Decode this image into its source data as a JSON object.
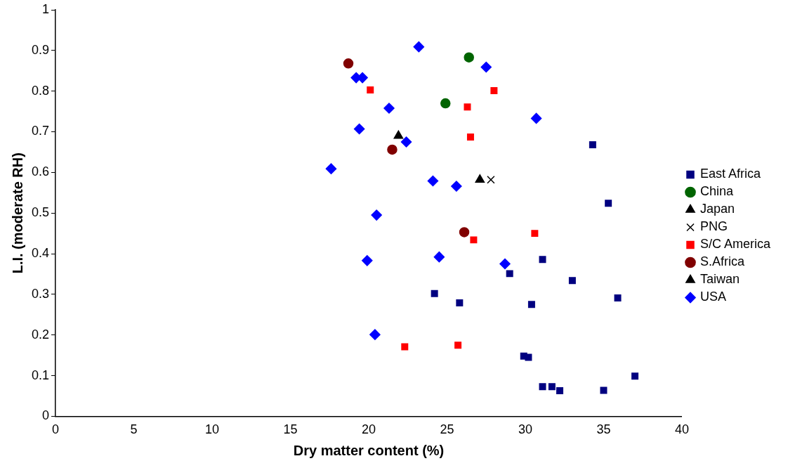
{
  "chart_data": {
    "type": "scatter",
    "xlabel": "Dry matter content (%)",
    "ylabel": "L.I. (moderate RH)",
    "xlim": [
      0,
      40
    ],
    "xticks": [
      0,
      5,
      10,
      15,
      20,
      25,
      30,
      35,
      40
    ],
    "ylim": [
      0,
      1
    ],
    "yticks": [
      0,
      0.1,
      0.2,
      0.3,
      0.4,
      0.5,
      0.6,
      0.7,
      0.8,
      0.9,
      1
    ],
    "grid": false,
    "legend": "right",
    "series": [
      {
        "name": "East Africa",
        "color": "#000080",
        "marker": "square",
        "x": [
          34.3,
          35.3,
          31.1,
          29.0,
          33.0,
          24.2,
          35.9,
          25.8,
          30.4,
          29.9,
          30.2,
          37.0,
          31.1,
          31.7,
          32.2,
          35.0
        ],
        "values": [
          0.668,
          0.524,
          0.386,
          0.351,
          0.334,
          0.302,
          0.291,
          0.279,
          0.275,
          0.148,
          0.145,
          0.099,
          0.073,
          0.073,
          0.063,
          0.064
        ]
      },
      {
        "name": "China",
        "color": "#006400",
        "marker": "circle",
        "x": [
          26.4,
          24.9
        ],
        "values": [
          0.883,
          0.77
        ]
      },
      {
        "name": "Japan",
        "color": "#000000",
        "marker": "triangle",
        "x": [
          27.1
        ],
        "values": [
          0.582
        ]
      },
      {
        "name": "PNG",
        "color": "#000000",
        "marker": "cross",
        "x": [
          27.8
        ],
        "values": [
          0.582
        ]
      },
      {
        "name": "S/C America",
        "color": "#ff0000",
        "marker": "square",
        "x": [
          20.1,
          28.0,
          26.3,
          26.5,
          30.6,
          26.7,
          22.3,
          25.7
        ],
        "values": [
          0.803,
          0.801,
          0.761,
          0.687,
          0.45,
          0.434,
          0.171,
          0.175
        ]
      },
      {
        "name": "S.Africa",
        "color": "#800000",
        "marker": "circle",
        "x": [
          18.7,
          21.5,
          26.1
        ],
        "values": [
          0.868,
          0.656,
          0.453
        ]
      },
      {
        "name": "Taiwan",
        "color": "#000000",
        "marker": "triangle",
        "x": [
          21.9
        ],
        "values": [
          0.69
        ]
      },
      {
        "name": "USA",
        "color": "#0000ff",
        "marker": "diamond",
        "x": [
          23.2,
          27.5,
          19.2,
          19.6,
          21.3,
          30.7,
          19.4,
          22.4,
          17.6,
          24.1,
          25.6,
          20.5,
          19.9,
          24.5,
          28.7,
          20.4
        ],
        "values": [
          0.909,
          0.859,
          0.833,
          0.833,
          0.758,
          0.733,
          0.707,
          0.675,
          0.609,
          0.579,
          0.566,
          0.495,
          0.383,
          0.392,
          0.375,
          0.201
        ]
      }
    ]
  }
}
